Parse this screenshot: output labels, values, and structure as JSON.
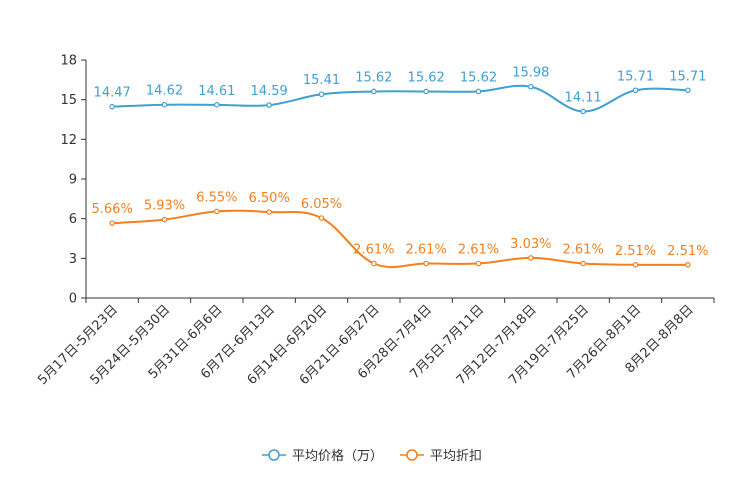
{
  "chart_data": {
    "type": "line",
    "categories": [
      "5月17日-5月23日",
      "5月24日-5月30日",
      "5月31日-6月6日",
      "6月7日-6月13日",
      "6月14日-6月20日",
      "6月21日-6月27日",
      "6月28日-7月4日",
      "7月5日-7月11日",
      "7月12日-7月18日",
      "7月19日-7月25日",
      "7月26日-8月1日",
      "8月2日-8月8日"
    ],
    "ylim": [
      0,
      18
    ],
    "yticks": [
      0,
      3,
      6,
      9,
      12,
      15,
      18
    ],
    "grid": false,
    "legend_position": "bottom",
    "series": [
      {
        "name": "平均价格（万）",
        "color": "#3fa0cf",
        "values": [
          14.47,
          14.62,
          14.61,
          14.59,
          15.41,
          15.62,
          15.62,
          15.62,
          15.98,
          14.11,
          15.71,
          15.71
        ],
        "labels": [
          "14.47",
          "14.62",
          "14.61",
          "14.59",
          "15.41",
          "15.62",
          "15.62",
          "15.62",
          "15.98",
          "14.11",
          "15.71",
          "15.71"
        ]
      },
      {
        "name": "平均折扣",
        "color": "#f47f1f",
        "values": [
          5.66,
          5.93,
          6.55,
          6.5,
          6.05,
          2.61,
          2.61,
          2.61,
          3.03,
          2.61,
          2.51,
          2.51
        ],
        "labels": [
          "5.66%",
          "5.93%",
          "6.55%",
          "6.50%",
          "6.05%",
          "2.61%",
          "2.61%",
          "2.61%",
          "3.03%",
          "2.61%",
          "2.51%",
          "2.51%"
        ]
      }
    ]
  }
}
